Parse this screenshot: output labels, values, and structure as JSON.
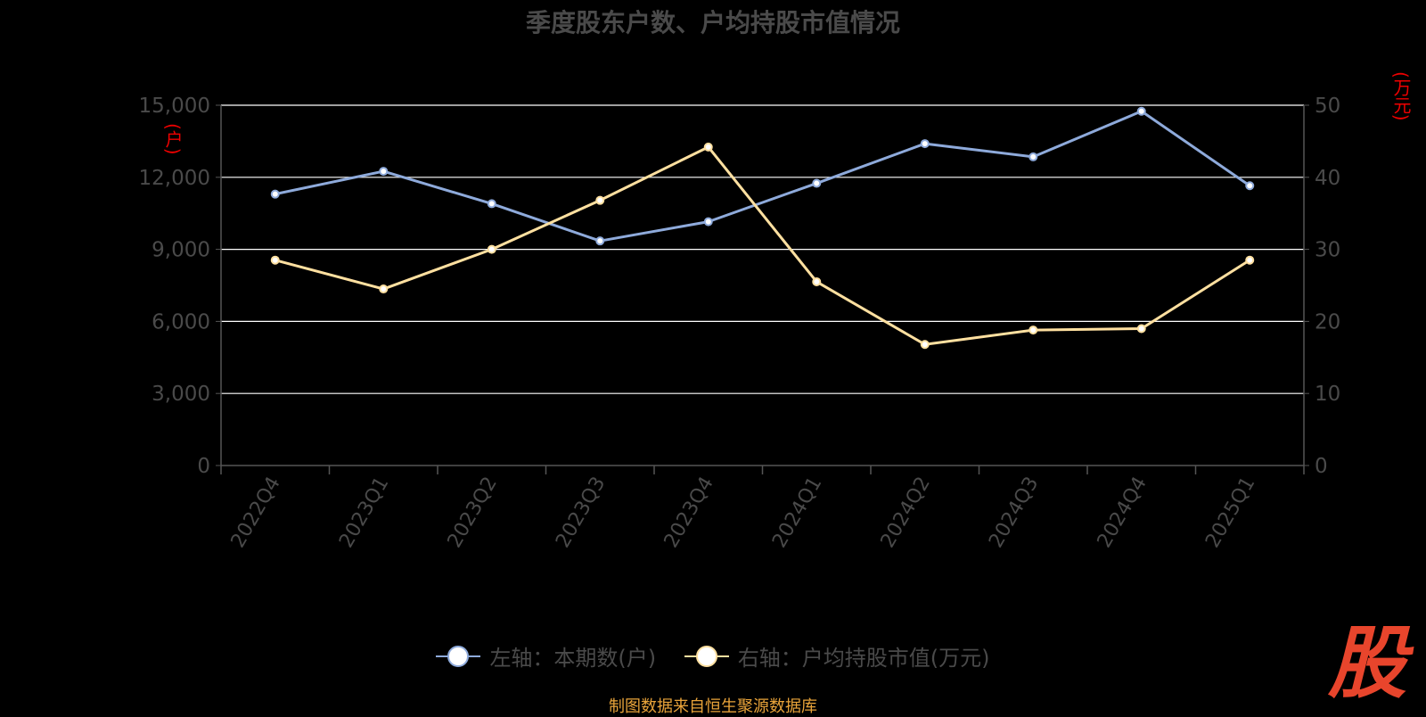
{
  "title": "季度股东户数、户均持股市值情况",
  "source": "制图数据来自恒生聚源数据库",
  "logo_text": "股",
  "colors": {
    "left_series": "#8eaadb",
    "right_series": "#ffe0a0",
    "grid": "#ffffff",
    "axis": "#555555",
    "tick_text": "#4a4a4a",
    "unit_text": "#ee0000",
    "source_text": "#e8a33a",
    "logo": "#e8452c"
  },
  "chart_data": {
    "type": "line",
    "categories": [
      "2022Q4",
      "2023Q1",
      "2023Q2",
      "2023Q3",
      "2023Q4",
      "2024Q1",
      "2024Q2",
      "2024Q3",
      "2024Q4",
      "2025Q1"
    ],
    "series": [
      {
        "name": "左轴：本期数(户)",
        "axis": "left",
        "values": [
          11300,
          12250,
          10900,
          9350,
          10150,
          11750,
          13400,
          12850,
          14750,
          11650
        ]
      },
      {
        "name": "右轴：户均持股市值(万元)",
        "axis": "right",
        "values": [
          28.5,
          24.5,
          30.0,
          36.8,
          44.2,
          25.5,
          16.8,
          18.8,
          19.0,
          28.5
        ]
      }
    ],
    "y_left": {
      "min": 0,
      "max": 15000,
      "ticks": [
        0,
        3000,
        6000,
        9000,
        12000,
        15000
      ],
      "tick_labels": [
        "0",
        "3,000",
        "6,000",
        "9,000",
        "12,000",
        "15,000"
      ],
      "unit": "(户)"
    },
    "y_right": {
      "min": 0,
      "max": 50,
      "ticks": [
        0,
        10,
        20,
        30,
        40,
        50
      ],
      "tick_labels": [
        "0",
        "10",
        "20",
        "30",
        "40",
        "50"
      ],
      "unit": "(万元)"
    },
    "grid": true,
    "legend_position": "bottom"
  }
}
